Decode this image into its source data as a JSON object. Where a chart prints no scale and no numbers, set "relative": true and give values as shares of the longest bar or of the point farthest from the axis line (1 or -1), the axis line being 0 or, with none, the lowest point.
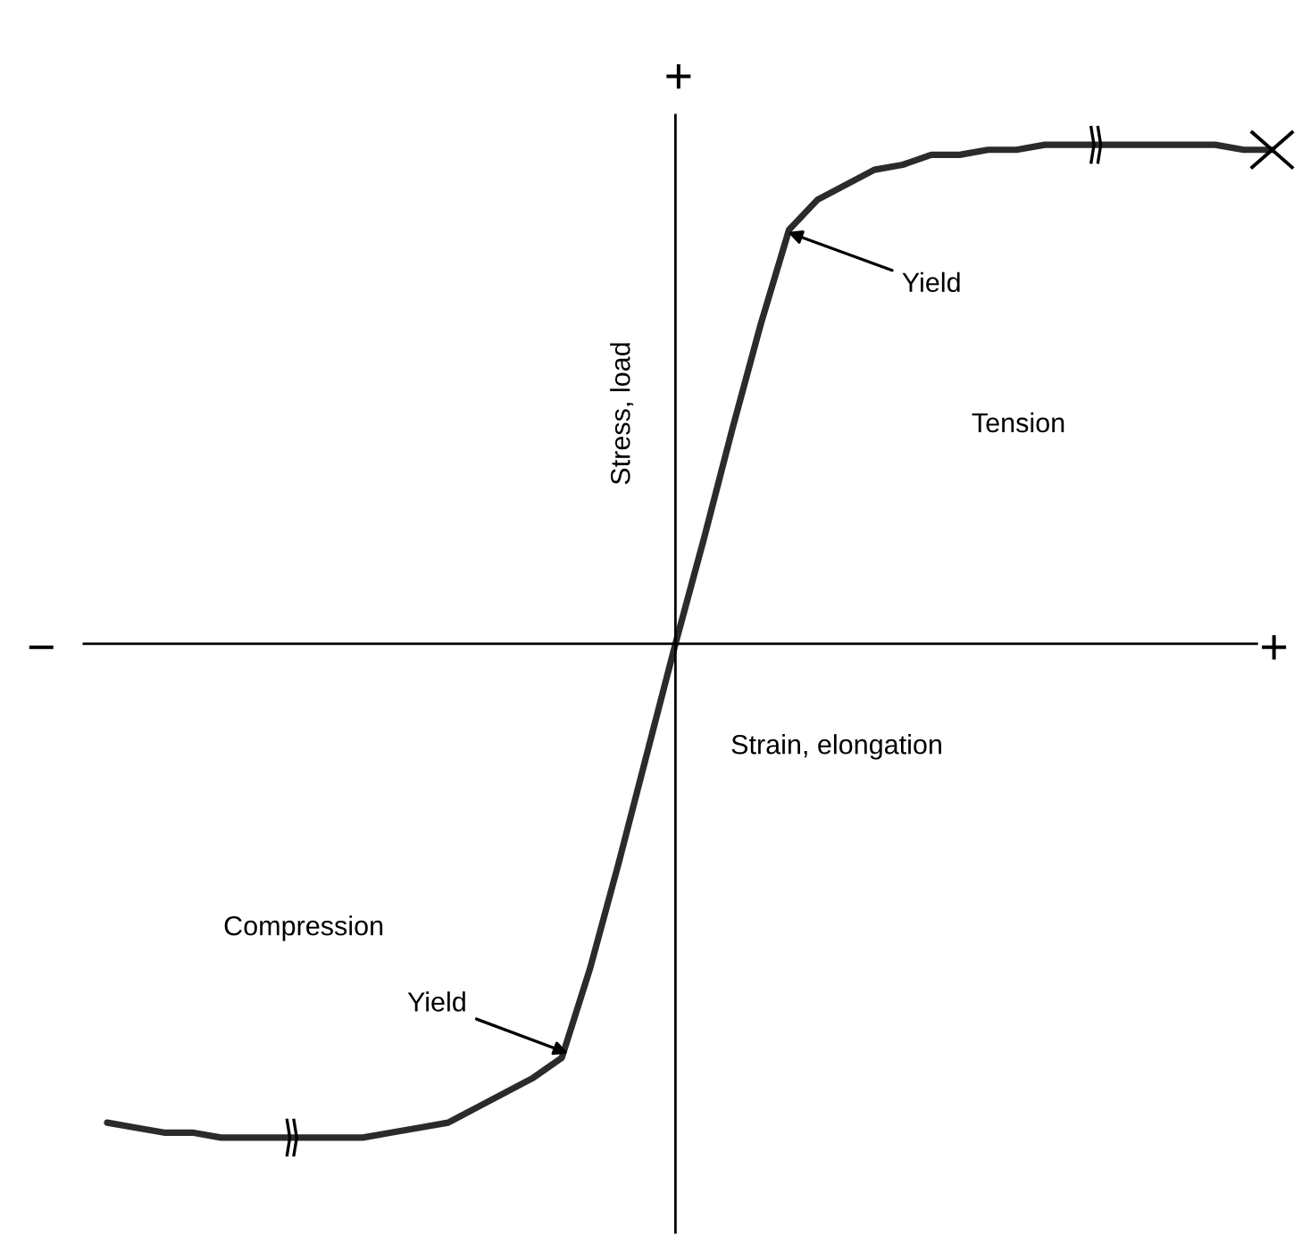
{
  "chart_data": {
    "type": "line",
    "relative": true,
    "xlabel": "Strain, elongation",
    "ylabel": "Stress, load",
    "categories": [
      null,
      null,
      null,
      null,
      null,
      null,
      null,
      null,
      null,
      null,
      null,
      null,
      null,
      null,
      null,
      null,
      null,
      null,
      null,
      null,
      null,
      null,
      null,
      null,
      null,
      null,
      null,
      null,
      null,
      null,
      null,
      null,
      null,
      null,
      null,
      null,
      null,
      null,
      null,
      null,
      null,
      null
    ],
    "series": [
      {
        "color": "#2b2b2b",
        "values": [
          -0.96,
          -0.97,
          -0.98,
          -0.98,
          -0.99,
          -0.99,
          -0.99,
          -0.99,
          -0.99,
          -0.99,
          -0.98,
          -0.97,
          -0.96,
          -0.93,
          -0.9,
          -0.87,
          -0.83,
          -0.65,
          -0.44,
          -0.22,
          0,
          0.21,
          0.43,
          0.64,
          0.83,
          0.89,
          0.92,
          0.95,
          0.96,
          0.98,
          0.98,
          0.99,
          0.99,
          1.0,
          1.0,
          1.0,
          1.0,
          1.0,
          1.0,
          1.0,
          0.99,
          0.99
        ]
      }
    ],
    "annotations": [
      "+",
      "−",
      "+",
      "Yield",
      "Yield",
      "Tension",
      "Compression"
    ]
  }
}
